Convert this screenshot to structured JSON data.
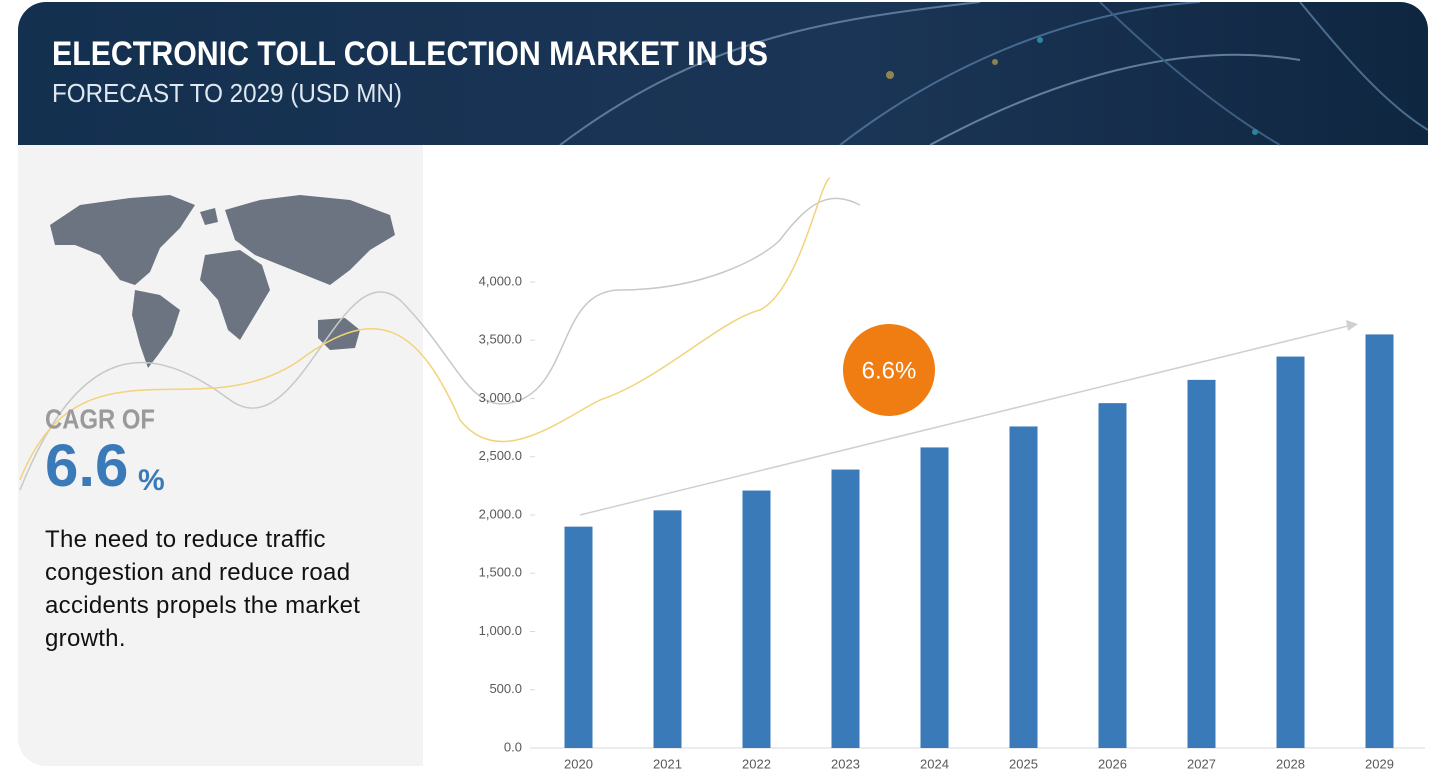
{
  "header": {
    "title": "ELECTRONIC TOLL COLLECTION MARKET IN US",
    "subtitle": "FORECAST TO 2029 (USD MN)"
  },
  "cagr": {
    "label": "CAGR OF",
    "value": 6.6,
    "unit": "%"
  },
  "description": "The need to reduce traffic congestion and reduce road accidents propels the market growth.",
  "chart_data": {
    "type": "bar",
    "categories": [
      "2020",
      "2021",
      "2022",
      "2023",
      "2024",
      "2025",
      "2026",
      "2027",
      "2028",
      "2029"
    ],
    "values": [
      1900,
      2040,
      2210,
      2390,
      2580,
      2760,
      2960,
      3160,
      3360,
      3550
    ],
    "color": "#3a7ab8",
    "annotation": "6.6%",
    "ylim": [
      0,
      4000
    ],
    "yticks": [
      {
        "value": 0,
        "label": "0.0"
      },
      {
        "value": 500,
        "label": "500.0"
      },
      {
        "value": 1000,
        "label": "1,000.0"
      },
      {
        "value": 1500,
        "label": "1,500.0"
      },
      {
        "value": 2000,
        "label": "2,000.0"
      },
      {
        "value": 2500,
        "label": "2,500.0"
      },
      {
        "value": 3000,
        "label": "3,000.0"
      },
      {
        "value": 3500,
        "label": "3,500.0"
      },
      {
        "value": 4000,
        "label": "4,000.0"
      }
    ],
    "grid": false
  }
}
